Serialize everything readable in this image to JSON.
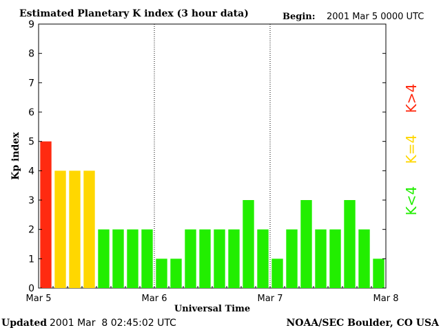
{
  "header": {
    "title": "Estimated Planetary K index (3 hour data)",
    "begin_label": "Begin:",
    "begin_value": "2001 Mar 5 0000 UTC"
  },
  "footer": {
    "updated_label": "Updated",
    "updated_value": "2001 Mar  8 02:45:02 UTC",
    "credit": "NOAA/SEC Boulder, CO USA"
  },
  "legend": [
    {
      "label": "K>4",
      "color": "#ff2a10"
    },
    {
      "label": "K=4",
      "color": "#ffd700"
    },
    {
      "label": "K<4",
      "color": "#22ee00"
    }
  ],
  "chart_data": {
    "type": "bar",
    "title": "Estimated Planetary K index (3 hour data)",
    "xlabel": "Universal Time",
    "ylabel": "Kp index",
    "ylim": [
      0,
      9
    ],
    "yticks": [
      0,
      1,
      2,
      3,
      4,
      5,
      6,
      7,
      8,
      9
    ],
    "xticks": [
      "Mar 5",
      "Mar 6",
      "Mar 7",
      "Mar 8"
    ],
    "interval_hours": 3,
    "values": [
      5,
      4,
      4,
      4,
      2,
      2,
      2,
      2,
      1,
      1,
      2,
      2,
      2,
      2,
      3,
      2,
      1,
      2,
      3,
      2,
      2,
      3,
      2,
      1
    ],
    "colors": {
      "above4": "#ff2a10",
      "equal4": "#ffd700",
      "below4": "#22ee00"
    },
    "day_dividers": true
  }
}
